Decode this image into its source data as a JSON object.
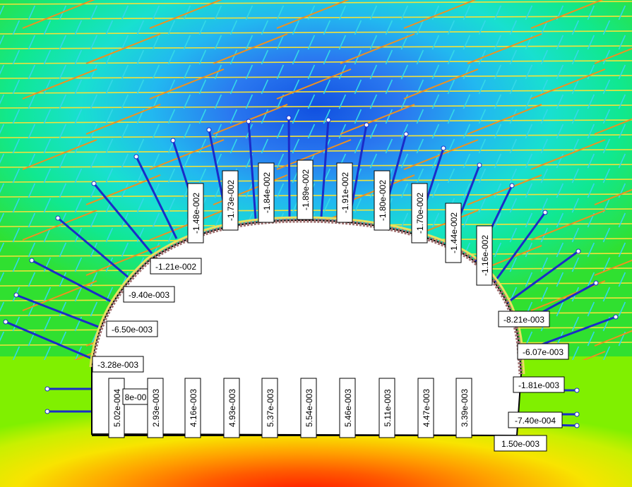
{
  "colors": {
    "bolt": "#1a2cc8",
    "joint_set_1": "#f2e23a",
    "joint_set_2": "#35d8e8",
    "joint_set_3": "#f0901e",
    "liner": "#a07070",
    "label_bg": "#ffffff",
    "label_border": "#000000"
  },
  "crown_labels": [
    "-3.28e-003",
    "-6.50e-003",
    "-9.40e-003",
    "-1.21e-002",
    "-1.48e-002",
    "-1.73e-002",
    "-1.84e-002",
    "-1.89e-002",
    "-1.91e-002",
    "-1.80e-002",
    "-1.70e-002",
    "-1.44e-002",
    "-1.16e-002",
    "-8.21e-003",
    "-6.07e-003"
  ],
  "floor_labels": [
    "5.02e-004",
    "8e-00",
    "2.93e-003",
    "4.16e-003",
    "4.93e-003",
    "5.37e-003",
    "5.54e-003",
    "5.46e-003",
    "5.11e-003",
    "4.47e-003",
    "3.39e-003"
  ],
  "right_wall_labels": [
    "-1.81e-003",
    "-7.40e-004",
    "1.50e-003"
  ]
}
